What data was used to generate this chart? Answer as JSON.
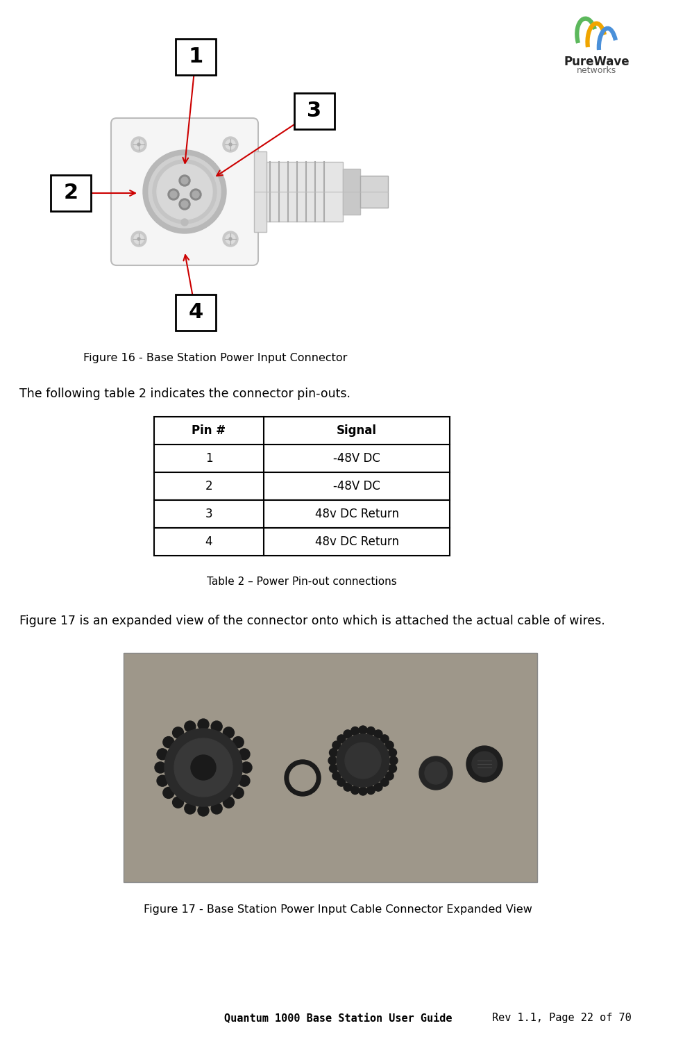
{
  "page_width": 9.74,
  "page_height": 14.93,
  "bg_color": "#ffffff",
  "logo_text_line1": "PureWave",
  "logo_text_line2": "networks",
  "figure16_caption": "Figure 16 - Base Station Power Input Connector",
  "intro_text": "The following table 2 indicates the connector pin-outs.",
  "table_headers": [
    "Pin #",
    "Signal"
  ],
  "table_rows": [
    [
      "1",
      "-48V DC"
    ],
    [
      "2",
      "-48V DC"
    ],
    [
      "3",
      "48v DC Return"
    ],
    [
      "4",
      "48v DC Return"
    ]
  ],
  "table_caption": "Table 2 – Power Pin-out connections",
  "figure17_intro": "Figure 17 is an expanded view of the connector onto which is attached the actual cable of wires.",
  "figure17_caption": "Figure 17 - Base Station Power Input Cable Connector Expanded View",
  "footer_left": "Quantum 1000 Base Station User Guide",
  "footer_right": "Rev 1.1, Page 22 of 70",
  "arrow_color": "#cc0000",
  "label_box_edge": "#000000",
  "logo_green": "#5cb85c",
  "logo_orange": "#f0a500",
  "logo_blue": "#4a90d9",
  "connector_gray": "#aaaaaa",
  "connector_bg": "#e8e8e8",
  "photo_bg": "#9e978a",
  "screw_color": "#cccccc",
  "pin_ring_outer": "#999999",
  "pin_ring_inner": "#bbbbbb",
  "cable_body": "#dddddd"
}
